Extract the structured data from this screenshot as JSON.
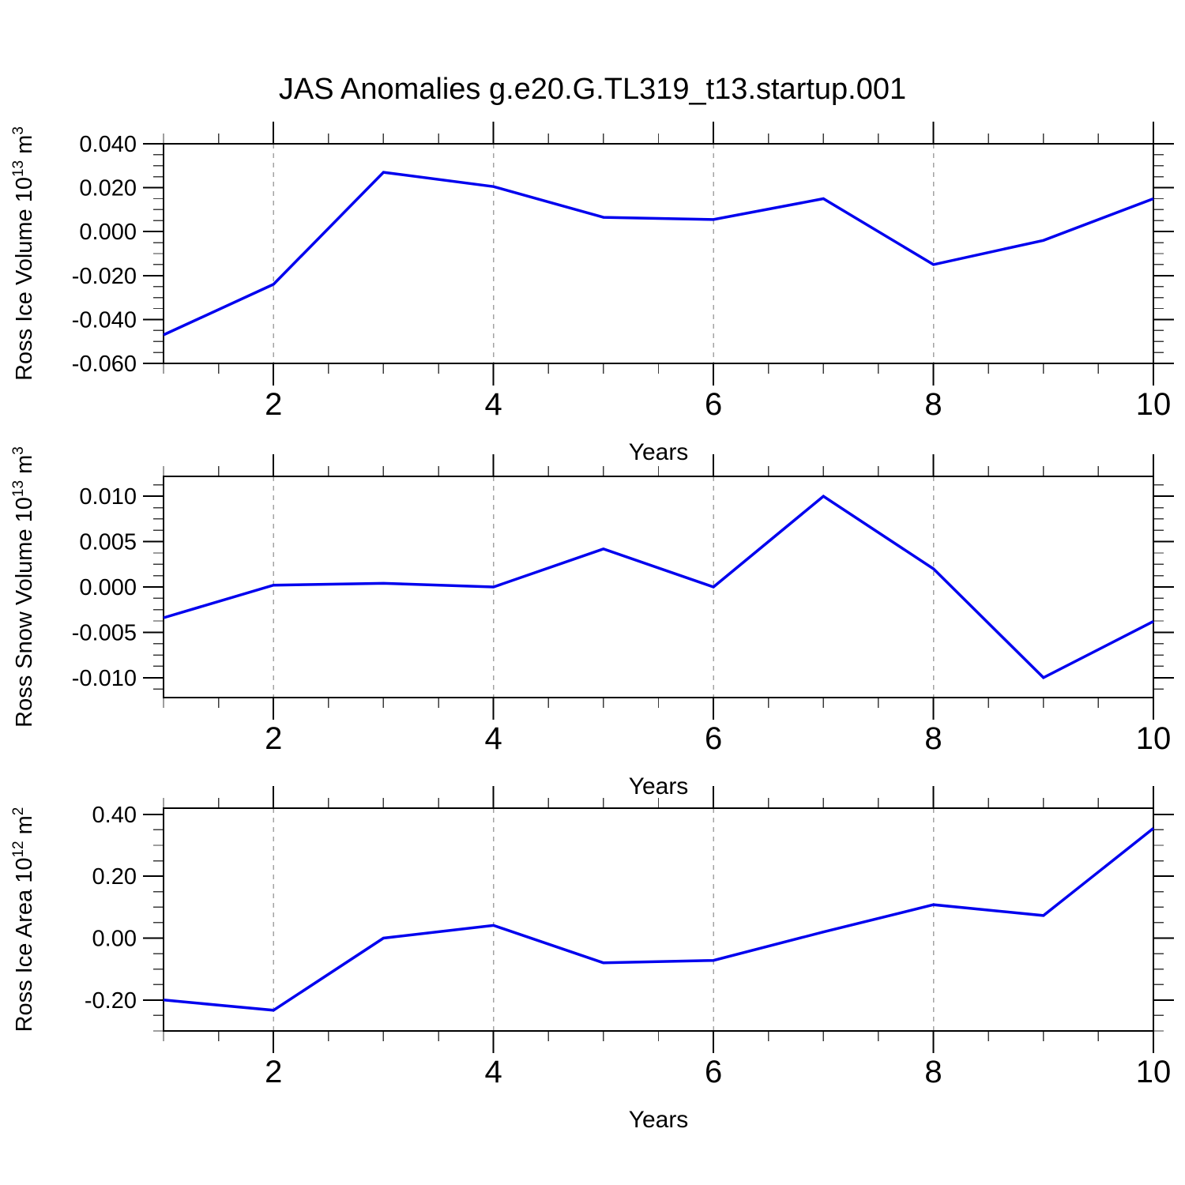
{
  "title": "JAS Anomalies g.e20.G.TL319_t13.startup.001",
  "colors": {
    "line": "#0000ee",
    "grid": "#a3a3a3",
    "axis": "#000000",
    "minor_tick": "#3c3c3c"
  },
  "chart_data": [
    {
      "type": "line",
      "ylabel": "Ross Ice Volume 10^13 m^3",
      "xlabel": "Years",
      "x": [
        1,
        2,
        3,
        4,
        5,
        6,
        7,
        8,
        9,
        10
      ],
      "values": [
        -0.047,
        -0.024,
        0.027,
        0.0205,
        0.0065,
        0.0055,
        0.015,
        -0.015,
        -0.004,
        0.015
      ],
      "ylim": [
        -0.06,
        0.04
      ],
      "ytick_values": [
        0.04,
        0.02,
        0.0,
        -0.02,
        -0.04,
        -0.06
      ],
      "ytick_labels": [
        "0.040",
        "0.020",
        "0.000",
        "-0.020",
        "-0.040",
        "-0.060"
      ],
      "yminor_step": 0.005,
      "xlim": [
        1,
        10
      ],
      "xtick_values": [
        2,
        4,
        6,
        8,
        10
      ],
      "xtick_labels": [
        "2",
        "4",
        "6",
        "8",
        "10"
      ],
      "xminor_step": 0.5,
      "grid_x": [
        2,
        4,
        6,
        8
      ],
      "grid": true,
      "legend": "none"
    },
    {
      "type": "line",
      "ylabel": "Ross Snow Volume 10^13 m^3",
      "xlabel": "Years",
      "x": [
        1,
        2,
        3,
        4,
        5,
        6,
        7,
        8,
        9,
        10
      ],
      "values": [
        -0.0034,
        0.0002,
        0.0004,
        0.0,
        0.0042,
        0.0,
        0.01,
        0.002,
        -0.01,
        -0.0038
      ],
      "ylim": [
        -0.0122,
        0.0122
      ],
      "ytick_values": [
        0.01,
        0.005,
        0.0,
        -0.005,
        -0.01
      ],
      "ytick_labels": [
        "0.010",
        "0.005",
        "0.000",
        "-0.005",
        "-0.010"
      ],
      "yminor_step": 0.00125,
      "xlim": [
        1,
        10
      ],
      "xtick_values": [
        2,
        4,
        6,
        8,
        10
      ],
      "xtick_labels": [
        "2",
        "4",
        "6",
        "8",
        "10"
      ],
      "xminor_step": 0.5,
      "grid_x": [
        2,
        4,
        6,
        8
      ],
      "grid": true,
      "legend": "none"
    },
    {
      "type": "line",
      "ylabel": "Ross Ice Area 10^12 m^2",
      "xlabel": "Years",
      "x": [
        1,
        2,
        3,
        4,
        5,
        6,
        7,
        8,
        9,
        10
      ],
      "values": [
        -0.2,
        -0.233,
        0.0,
        0.041,
        -0.08,
        -0.072,
        0.02,
        0.108,
        0.073,
        0.355
      ],
      "ylim": [
        -0.3,
        0.42
      ],
      "ytick_values": [
        0.4,
        0.2,
        0.0,
        -0.2
      ],
      "ytick_labels": [
        "0.40",
        "0.20",
        "0.00",
        "-0.20"
      ],
      "yminor_step": 0.05,
      "xlim": [
        1,
        10
      ],
      "xtick_values": [
        2,
        4,
        6,
        8,
        10
      ],
      "xtick_labels": [
        "2",
        "4",
        "6",
        "8",
        "10"
      ],
      "xminor_step": 0.5,
      "grid_x": [
        2,
        4,
        6,
        8
      ],
      "grid": true,
      "legend": "none"
    }
  ]
}
